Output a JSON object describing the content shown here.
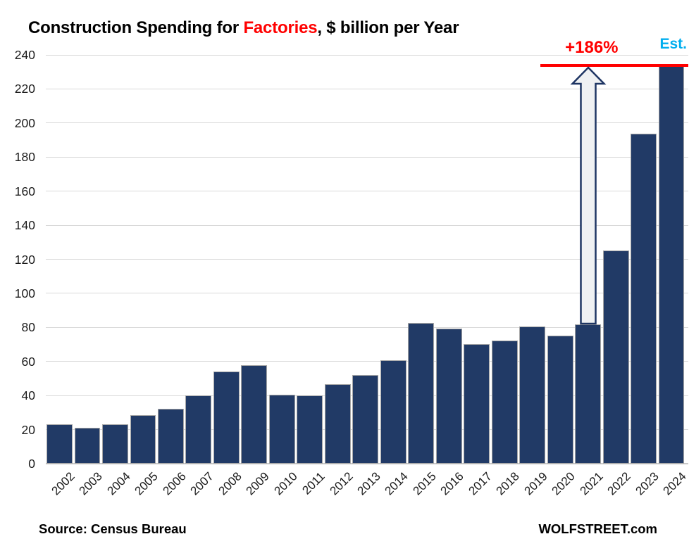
{
  "title": {
    "segments": [
      {
        "text": "Construction Spending for ",
        "color": "#000000"
      },
      {
        "text": "Factories",
        "color": "#ff0000"
      },
      {
        "text": ", $ billion per Year",
        "color": "#000000"
      }
    ]
  },
  "chart_data": {
    "type": "bar",
    "title": "Construction Spending for Factories, $ billion per Year",
    "categories": [
      "2002",
      "2003",
      "2004",
      "2005",
      "2006",
      "2007",
      "2008",
      "2009",
      "2010",
      "2011",
      "2012",
      "2013",
      "2014",
      "2015",
      "2016",
      "2017",
      "2018",
      "2019",
      "2020",
      "2021",
      "2022",
      "2023",
      "2024"
    ],
    "values": [
      23,
      21,
      23.3,
      28.4,
      32.4,
      40.1,
      54,
      57.8,
      40.6,
      40.2,
      46.8,
      51.9,
      60.7,
      82.7,
      79.2,
      70.3,
      72.3,
      80.4,
      75.1,
      81.8,
      125,
      193.8,
      234
    ],
    "xlabel": "",
    "ylabel": "",
    "ylim": [
      0,
      240
    ],
    "ytick_step": 20,
    "grid": true,
    "legend": "none",
    "bar_color": "#213a66",
    "bar_border_color": "#a6a6a6",
    "gridline_color": "#d9d9d9"
  },
  "annotations": {
    "pct_label": "+186%",
    "pct_color": "#ff0000",
    "est_label": "Est.",
    "est_color": "#00aeef",
    "red_line_level": 234,
    "red_line_color": "#ff0000",
    "arrow_from_year": "2021",
    "arrow_fill": "#eff1f3",
    "arrow_border": "#1e3563"
  },
  "footer": {
    "source": "Source: Census Bureau",
    "branding": "WOLFSTREET.com"
  }
}
